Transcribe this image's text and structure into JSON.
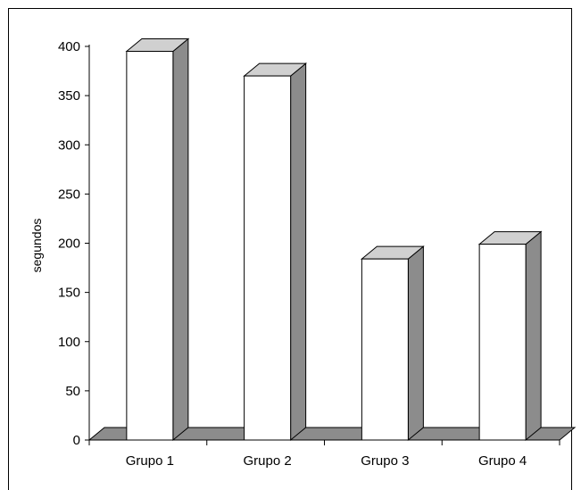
{
  "chart_data": {
    "type": "bar",
    "title": "",
    "xlabel": "",
    "ylabel": "segundos",
    "categories": [
      "Grupo 1",
      "Grupo 2",
      "Grupo 3",
      "Grupo 4"
    ],
    "values": [
      395,
      370,
      184,
      199
    ],
    "ylim": [
      0,
      400
    ],
    "yticks": [
      "0",
      "50",
      "100",
      "150",
      "200",
      "250",
      "300",
      "350",
      "400"
    ],
    "grid": false,
    "legend": "none",
    "colors": {
      "bar_front": "#ffffff",
      "bar_top": "#d0d0d0",
      "bar_side": "#8c8c8c",
      "floor": "#8c8c8c",
      "outline": "#000000"
    }
  }
}
